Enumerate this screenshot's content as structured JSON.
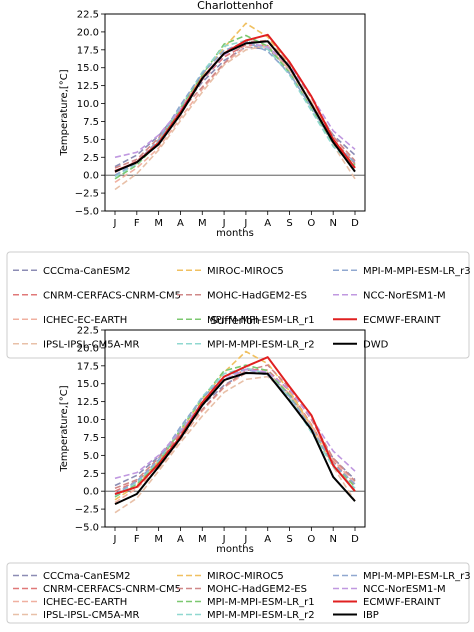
{
  "chart_data": [
    {
      "type": "line",
      "title": "Charlottenhof",
      "xlabel": "months",
      "ylabel": "Temperature,[°C]",
      "categories": [
        "J",
        "F",
        "M",
        "A",
        "M",
        "J",
        "J",
        "A",
        "S",
        "O",
        "N",
        "D"
      ],
      "ylim": [
        -5,
        22.5
      ],
      "yticks": [
        -5.0,
        -2.5,
        0.0,
        2.5,
        5.0,
        7.5,
        10.0,
        12.5,
        15.0,
        17.5,
        20.0,
        22.5
      ],
      "ytick_labels": [
        "−5.0",
        "−2.5",
        "0.0",
        "2.5",
        "5.0",
        "7.5",
        "10.0",
        "12.5",
        "15.0",
        "17.5",
        "20.0",
        "22.5"
      ],
      "grid": false,
      "zero_line": true,
      "legend_placement": "below",
      "series": [
        {
          "name": "CCCma-CanESM2",
          "color": "#8c8cb4",
          "dashed": true,
          "values": [
            1.2,
            2.8,
            5.5,
            9.2,
            13.0,
            16.0,
            17.9,
            17.6,
            14.9,
            10.0,
            5.6,
            2.8
          ]
        },
        {
          "name": "CNRM-CERFACS-CNRM-CM5",
          "color": "#e07878",
          "dashed": true,
          "values": [
            0.4,
            2.0,
            4.6,
            8.8,
            13.3,
            16.5,
            18.2,
            18.1,
            15.0,
            10.1,
            5.0,
            1.6
          ]
        },
        {
          "name": "ICHEC-EC-EARTH",
          "color": "#f0b0a0",
          "dashed": true,
          "values": [
            -1.0,
            1.0,
            3.8,
            8.0,
            12.0,
            15.6,
            17.9,
            17.9,
            14.8,
            10.2,
            5.4,
            2.0
          ]
        },
        {
          "name": "IPSL-IPSL-CM5A-MR",
          "color": "#e8c0a8",
          "dashed": true,
          "values": [
            -2.0,
            0.2,
            3.5,
            7.6,
            11.6,
            15.4,
            17.5,
            18.1,
            14.5,
            9.6,
            4.2,
            -0.5
          ]
        },
        {
          "name": "MIROC-MIROC5",
          "color": "#f0c060",
          "dashed": true,
          "values": [
            0.0,
            1.6,
            5.0,
            9.4,
            14.0,
            17.8,
            21.2,
            19.3,
            15.3,
            10.0,
            4.6,
            1.0
          ]
        },
        {
          "name": "MOHC-HadGEM2-ES",
          "color": "#d08888",
          "dashed": true,
          "values": [
            1.0,
            2.2,
            5.2,
            9.0,
            12.3,
            15.6,
            18.6,
            18.8,
            15.4,
            10.8,
            5.4,
            2.0
          ]
        },
        {
          "name": "MPI-M-MPI-ESM-LR_r1",
          "color": "#7cc870",
          "dashed": true,
          "values": [
            -0.5,
            1.4,
            4.6,
            9.4,
            14.0,
            18.3,
            19.5,
            18.0,
            14.3,
            9.3,
            4.4,
            1.4
          ]
        },
        {
          "name": "MPI-M-MPI-ESM-LR_r2",
          "color": "#90d8d0",
          "dashed": true,
          "values": [
            -0.2,
            1.6,
            4.8,
            9.6,
            14.4,
            18.0,
            18.8,
            17.6,
            14.0,
            9.0,
            4.0,
            1.2
          ]
        },
        {
          "name": "MPI-M-MPI-ESM-LR_r3",
          "color": "#90a8d0",
          "dashed": true,
          "values": [
            0.0,
            1.8,
            4.9,
            9.8,
            14.2,
            17.4,
            18.6,
            17.3,
            14.2,
            9.5,
            4.5,
            1.8
          ]
        },
        {
          "name": "NCC-NorESM1-M",
          "color": "#c098e0",
          "dashed": true,
          "values": [
            2.5,
            3.2,
            5.6,
            9.2,
            13.4,
            16.8,
            18.5,
            17.9,
            15.3,
            11.0,
            6.2,
            3.6
          ]
        },
        {
          "name": "ECMWF-ERAINT",
          "color": "#e02020",
          "dashed": false,
          "values": [
            0.6,
            1.8,
            4.5,
            8.8,
            13.6,
            17.0,
            18.8,
            19.6,
            15.8,
            11.0,
            5.0,
            1.0
          ]
        },
        {
          "name": "DWD",
          "color": "#000000",
          "dashed": false,
          "values": [
            0.5,
            1.8,
            4.3,
            8.5,
            13.5,
            17.0,
            18.4,
            18.7,
            15.1,
            9.9,
            4.6,
            0.5
          ]
        }
      ]
    },
    {
      "type": "line",
      "title": "Sufferloh",
      "xlabel": "months",
      "ylabel": "Temperature,[°C]",
      "categories": [
        "J",
        "F",
        "M",
        "A",
        "M",
        "J",
        "J",
        "A",
        "S",
        "O",
        "N",
        "D"
      ],
      "ylim": [
        -5,
        22.5
      ],
      "yticks": [
        -5.0,
        -2.5,
        0.0,
        2.5,
        5.0,
        7.5,
        10.0,
        12.5,
        15.0,
        17.5,
        20.0,
        22.5
      ],
      "ytick_labels": [
        "−5.0",
        "−2.5",
        "0.0",
        "2.5",
        "5.0",
        "7.5",
        "10.0",
        "12.5",
        "15.0",
        "17.5",
        "20.0",
        "22.5"
      ],
      "grid": false,
      "zero_line": true,
      "legend_placement": "below",
      "series": [
        {
          "name": "CCCma-CanESM2",
          "color": "#8c8cb4",
          "dashed": true,
          "values": [
            0.8,
            2.2,
            4.8,
            8.2,
            12.0,
            14.8,
            16.6,
            16.3,
            13.6,
            9.1,
            4.6,
            1.6
          ]
        },
        {
          "name": "CNRM-CERFACS-CNRM-CM5",
          "color": "#e07878",
          "dashed": true,
          "values": [
            0.0,
            1.4,
            4.0,
            8.0,
            12.4,
            15.4,
            17.0,
            16.9,
            14.0,
            9.3,
            4.2,
            0.8
          ]
        },
        {
          "name": "ICHEC-EC-EARTH",
          "color": "#f0b0a0",
          "dashed": true,
          "values": [
            -1.6,
            0.4,
            3.2,
            7.2,
            11.2,
            14.5,
            16.5,
            16.6,
            13.6,
            9.2,
            4.4,
            1.0
          ]
        },
        {
          "name": "IPSL-IPSL-CM5A-MR",
          "color": "#e8c0a8",
          "dashed": true,
          "values": [
            -3.0,
            -1.0,
            2.8,
            6.8,
            10.5,
            13.8,
            15.6,
            16.0,
            13.4,
            8.8,
            3.4,
            -1.4
          ]
        },
        {
          "name": "MIROC-MIROC5",
          "color": "#f0c060",
          "dashed": true,
          "values": [
            -1.2,
            0.8,
            4.2,
            8.4,
            12.8,
            16.6,
            19.5,
            17.8,
            14.0,
            9.0,
            3.6,
            0.0
          ]
        },
        {
          "name": "MOHC-HadGEM2-ES",
          "color": "#d08888",
          "dashed": true,
          "values": [
            0.4,
            1.6,
            4.6,
            8.2,
            11.4,
            14.6,
            16.8,
            17.6,
            14.4,
            10.0,
            4.6,
            1.4
          ]
        },
        {
          "name": "MPI-M-MPI-ESM-LR_r1",
          "color": "#7cc870",
          "dashed": true,
          "values": [
            -0.8,
            1.0,
            4.0,
            8.6,
            13.0,
            16.8,
            17.6,
            16.8,
            13.4,
            8.6,
            3.8,
            0.6
          ]
        },
        {
          "name": "MPI-M-MPI-ESM-LR_r2",
          "color": "#90d8d0",
          "dashed": true,
          "values": [
            -0.6,
            1.2,
            4.3,
            8.8,
            13.2,
            16.4,
            17.2,
            16.4,
            13.0,
            8.2,
            3.4,
            0.4
          ]
        },
        {
          "name": "MPI-M-MPI-ESM-LR_r3",
          "color": "#90a8d0",
          "dashed": true,
          "values": [
            -0.4,
            1.4,
            4.4,
            9.0,
            13.0,
            16.0,
            17.0,
            16.2,
            13.2,
            8.8,
            3.8,
            1.0
          ]
        },
        {
          "name": "NCC-NorESM1-M",
          "color": "#c098e0",
          "dashed": true,
          "values": [
            1.8,
            2.6,
            5.0,
            8.4,
            12.4,
            15.6,
            17.0,
            16.6,
            14.2,
            10.2,
            5.6,
            2.8
          ]
        },
        {
          "name": "ECMWF-ERAINT",
          "color": "#e02020",
          "dashed": false,
          "values": [
            -0.4,
            0.6,
            3.8,
            7.6,
            12.4,
            16.0,
            17.4,
            18.7,
            14.6,
            10.6,
            3.6,
            0.0
          ]
        },
        {
          "name": "IBP",
          "color": "#000000",
          "dashed": false,
          "values": [
            -1.8,
            -0.4,
            3.4,
            7.4,
            12.0,
            15.5,
            16.5,
            16.4,
            12.6,
            8.6,
            2.0,
            -1.4
          ]
        }
      ]
    }
  ]
}
